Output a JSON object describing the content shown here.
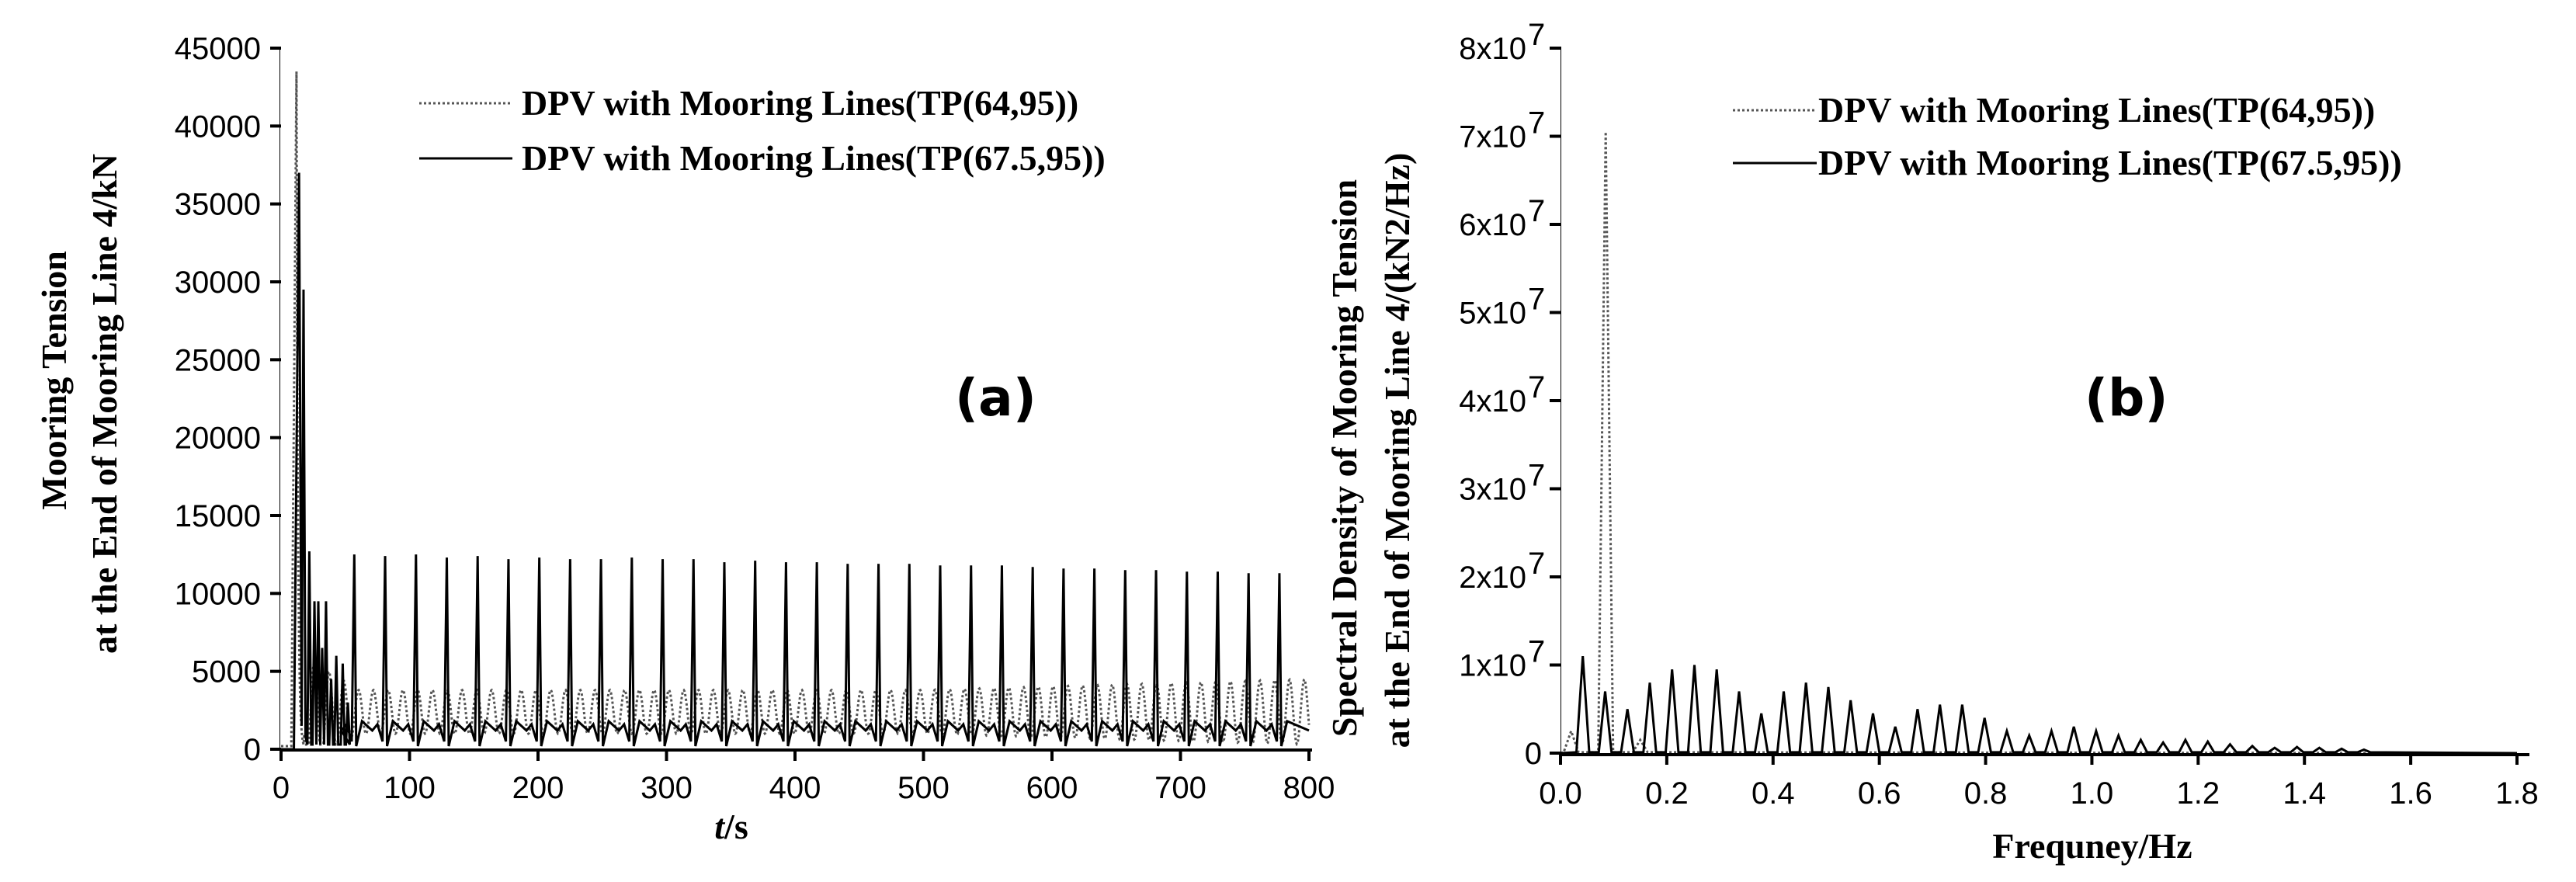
{
  "chart_data": [
    {
      "type": "line",
      "panel_label": "(a)",
      "title": "",
      "xlabel_italic": "t",
      "xlabel_rest": "/s",
      "ylabel_lines": [
        "Mooring Tension",
        "at the End of Mooring Line 4/kN"
      ],
      "xlim": [
        0,
        800
      ],
      "ylim": [
        0,
        45000
      ],
      "xticks": [
        0,
        100,
        200,
        300,
        400,
        500,
        600,
        700,
        800
      ],
      "yticks": [
        0,
        5000,
        10000,
        15000,
        20000,
        25000,
        30000,
        35000,
        40000,
        45000
      ],
      "legend_position": "top-right",
      "series": [
        {
          "name": "DPV with Mooring Lines(TP(64,95))",
          "style": "dotted",
          "description": "initial spike to about 43500 kN near t=12 s, then oscillation of about 3500-4500 kN peaks with period about 11 s",
          "peak_t": 12,
          "peak_value": 43500,
          "steady_peak": 3800,
          "steady_trough": 1000,
          "period": 11.5
        },
        {
          "name": "DPV with Mooring Lines(TP(67.5,95))",
          "style": "solid",
          "description": "initial spike to about 37000 kN near t=14 s, then periodic spikes of about 12000-12500 kN every ~24 s",
          "peak_t": 14,
          "peak_value": 37000,
          "spike_times": [
            57,
            81,
            105,
            129,
            153,
            177,
            201,
            225,
            249,
            273,
            297,
            321,
            345,
            369,
            393,
            417,
            441,
            465,
            489,
            513,
            537,
            561,
            585,
            609,
            633,
            657,
            681,
            705,
            729,
            753,
            777
          ],
          "spike_values": [
            12500,
            12400,
            12500,
            12300,
            12400,
            12200,
            12300,
            12200,
            12200,
            12300,
            12200,
            12200,
            12000,
            12100,
            12000,
            12000,
            11900,
            11900,
            11900,
            11800,
            11800,
            11800,
            11700,
            11600,
            11600,
            11500,
            11500,
            11400,
            11400,
            11300,
            11300
          ]
        }
      ]
    },
    {
      "type": "line",
      "panel_label": "(b)",
      "title": "",
      "xlabel": "Frequney/Hz",
      "ylabel_lines": [
        "Spectral Density of Mooring Tension",
        "at the End of Mooring Line 4/(kN2/Hz)"
      ],
      "xlim": [
        0,
        1.8
      ],
      "ylim": [
        0,
        80000000
      ],
      "xticks": [
        "0.0",
        "0.2",
        "0.4",
        "0.6",
        "0.8",
        "1.0",
        "1.2",
        "1.4",
        "1.6",
        "1.8"
      ],
      "yticks_mantissa": [
        "0",
        "1x10",
        "2x10",
        "3x10",
        "4x10",
        "5x10",
        "6x10",
        "7x10",
        "8x10"
      ],
      "yticks_exponent": "7",
      "legend_position": "top-right",
      "series": [
        {
          "name": "DPV with Mooring Lines(TP(64,95))",
          "style": "dotted",
          "peaks": [
            {
              "f": 0.02,
              "v": 2500000
            },
            {
              "f": 0.085,
              "v": 70500000
            },
            {
              "f": 0.15,
              "v": 1500000
            }
          ]
        },
        {
          "name": "DPV with Mooring Lines(TP(67.5,95))",
          "style": "solid",
          "peaks": [
            {
              "f": 0.042,
              "v": 11000000
            },
            {
              "f": 0.084,
              "v": 7000000
            },
            {
              "f": 0.126,
              "v": 5000000
            },
            {
              "f": 0.168,
              "v": 8000000
            },
            {
              "f": 0.21,
              "v": 9500000
            },
            {
              "f": 0.252,
              "v": 10000000
            },
            {
              "f": 0.294,
              "v": 9500000
            },
            {
              "f": 0.336,
              "v": 7000000
            },
            {
              "f": 0.378,
              "v": 4500000
            },
            {
              "f": 0.42,
              "v": 7000000
            },
            {
              "f": 0.462,
              "v": 8000000
            },
            {
              "f": 0.504,
              "v": 7500000
            },
            {
              "f": 0.546,
              "v": 6000000
            },
            {
              "f": 0.588,
              "v": 4500000
            },
            {
              "f": 0.63,
              "v": 3000000
            },
            {
              "f": 0.672,
              "v": 5000000
            },
            {
              "f": 0.714,
              "v": 5500000
            },
            {
              "f": 0.756,
              "v": 5500000
            },
            {
              "f": 0.798,
              "v": 4000000
            },
            {
              "f": 0.84,
              "v": 2500000
            },
            {
              "f": 0.882,
              "v": 2000000
            },
            {
              "f": 0.924,
              "v": 2500000
            },
            {
              "f": 0.966,
              "v": 3000000
            },
            {
              "f": 1.008,
              "v": 2500000
            },
            {
              "f": 1.05,
              "v": 2000000
            },
            {
              "f": 1.092,
              "v": 1500000
            },
            {
              "f": 1.134,
              "v": 1200000
            },
            {
              "f": 1.176,
              "v": 1500000
            },
            {
              "f": 1.218,
              "v": 1300000
            },
            {
              "f": 1.26,
              "v": 1000000
            },
            {
              "f": 1.302,
              "v": 800000
            },
            {
              "f": 1.344,
              "v": 600000
            },
            {
              "f": 1.386,
              "v": 700000
            },
            {
              "f": 1.428,
              "v": 600000
            },
            {
              "f": 1.47,
              "v": 500000
            },
            {
              "f": 1.512,
              "v": 400000
            }
          ]
        }
      ]
    }
  ]
}
